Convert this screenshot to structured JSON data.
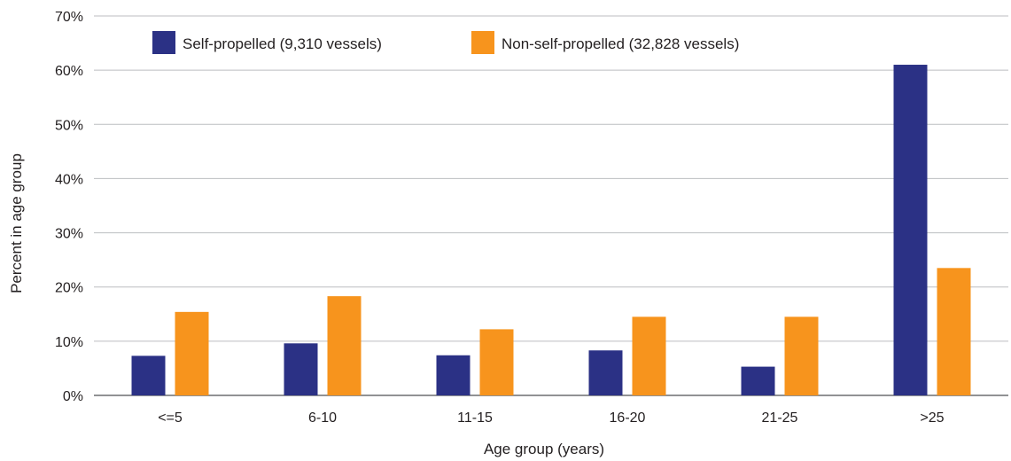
{
  "chart_data": {
    "type": "bar",
    "categories": [
      "<=5",
      "6-10",
      "11-15",
      "16-20",
      "21-25",
      ">25"
    ],
    "series": [
      {
        "name": "Self-propelled (9,310 vessels)",
        "color": "#2b3185",
        "values": [
          7.3,
          9.6,
          7.4,
          8.3,
          5.3,
          61.0
        ]
      },
      {
        "name": "Non-self-propelled (32,828 vessels)",
        "color": "#f7941d",
        "values": [
          15.4,
          18.3,
          12.2,
          14.5,
          14.5,
          23.5
        ]
      }
    ],
    "xlabel": "Age group (years)",
    "ylabel": "Percent in age group",
    "ylim": [
      0,
      70
    ],
    "yticks": [
      0,
      10,
      20,
      30,
      40,
      50,
      60,
      70
    ],
    "ytick_labels": [
      "0%",
      "10%",
      "20%",
      "30%",
      "40%",
      "50%",
      "60%",
      "70%"
    ],
    "grid": true,
    "legend_position": "top-left"
  }
}
